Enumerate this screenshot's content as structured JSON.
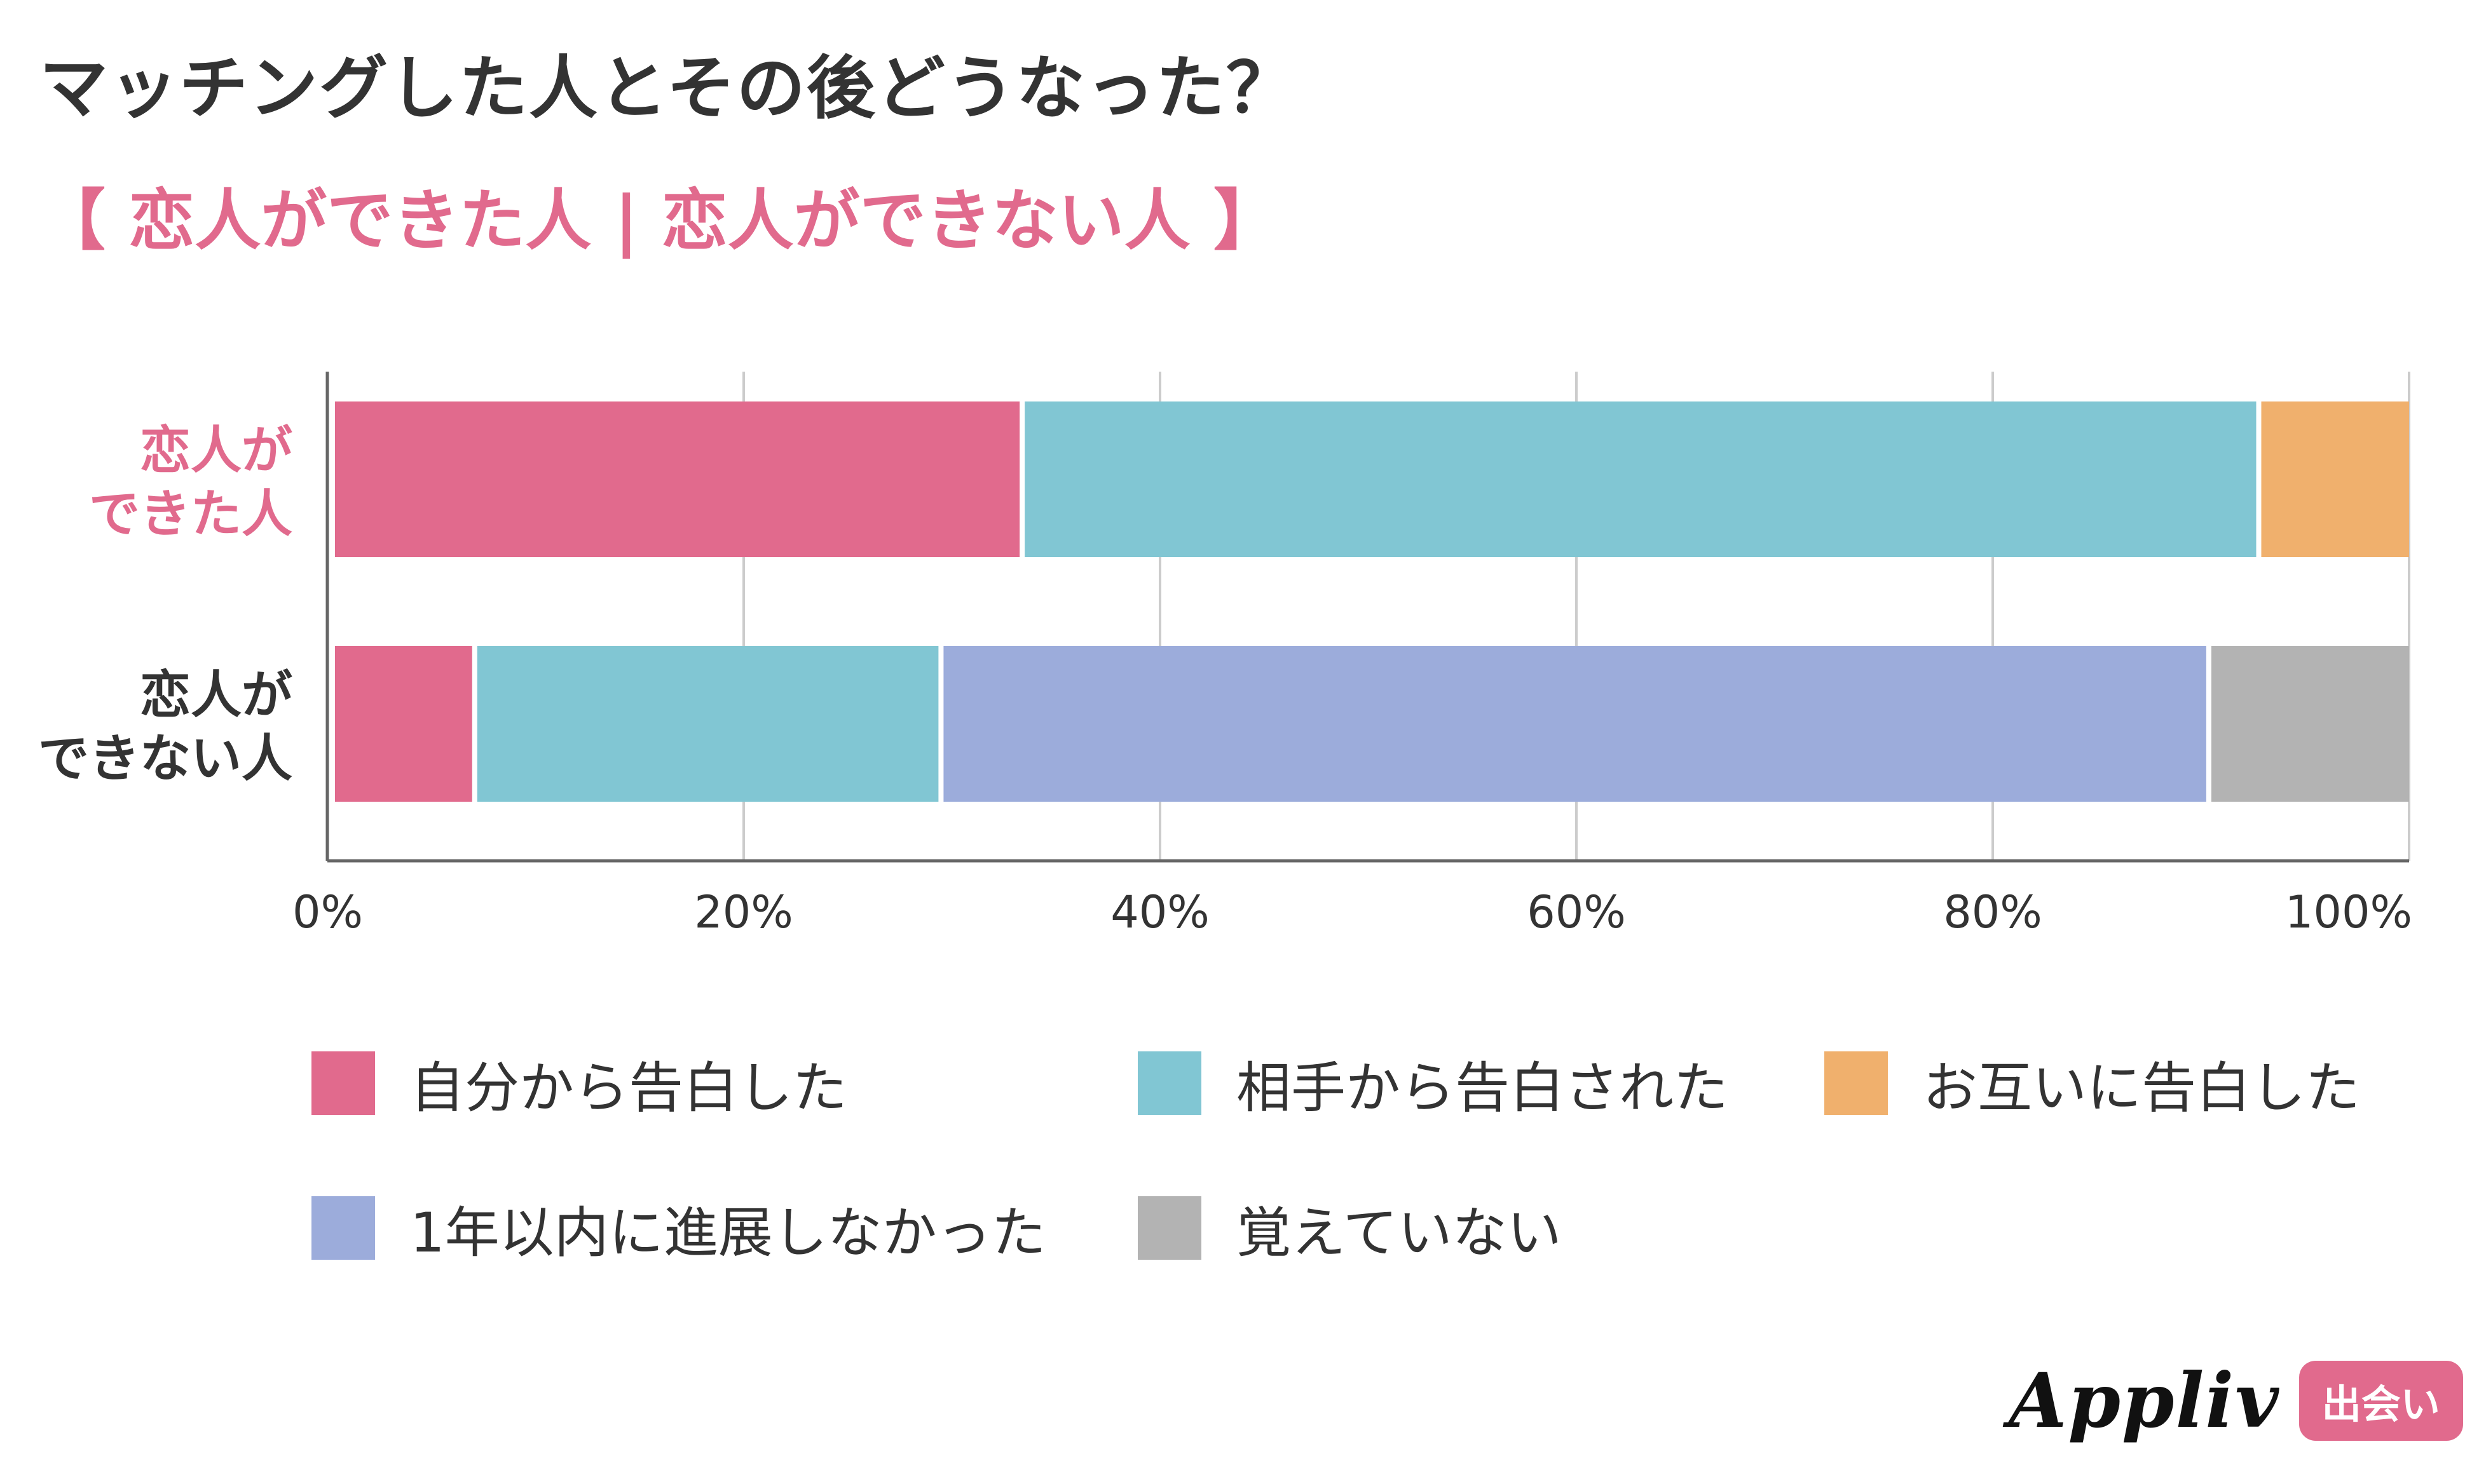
{
  "header": {
    "title": "マッチングした人とその後どうなった？",
    "subtitle": "【 恋人ができた人 | 恋人ができない人 】"
  },
  "colors": {
    "pink": "#e16a8d",
    "teal": "#81c6d3",
    "orange": "#f0b06d",
    "lavender": "#9cacdb",
    "gray": "#b3b3b3",
    "text": "#333333",
    "grid": "#cccccc",
    "axis": "#666666"
  },
  "chart_data": {
    "type": "bar",
    "orientation": "horizontal",
    "stacked": true,
    "categories": [
      {
        "line1": "恋人が",
        "line2": "できた人",
        "color": "#e16a8d"
      },
      {
        "line1": "恋人が",
        "line2": "できない人",
        "color": "#333333"
      }
    ],
    "series": [
      {
        "name": "自分から告白した",
        "color": "#e16a8d",
        "values": [
          33.5,
          7.2
        ]
      },
      {
        "name": "相手から告白された",
        "color": "#81c6d3",
        "values": [
          59.4,
          22.4
        ]
      },
      {
        "name": "お互いに告白した",
        "color": "#f0b06d",
        "values": [
          7.1,
          0
        ]
      },
      {
        "name": "1年以内に進展しなかった",
        "color": "#9cacdb",
        "values": [
          0,
          60.9
        ]
      },
      {
        "name": "覚えていない",
        "color": "#b3b3b3",
        "values": [
          0,
          9.5
        ]
      }
    ],
    "xlim": [
      0,
      100
    ],
    "xticks": [
      "0%",
      "20%",
      "40%",
      "60%",
      "80%",
      "100%"
    ],
    "grid": true
  },
  "brand": {
    "name": "Appliv",
    "badge": "出会い"
  }
}
